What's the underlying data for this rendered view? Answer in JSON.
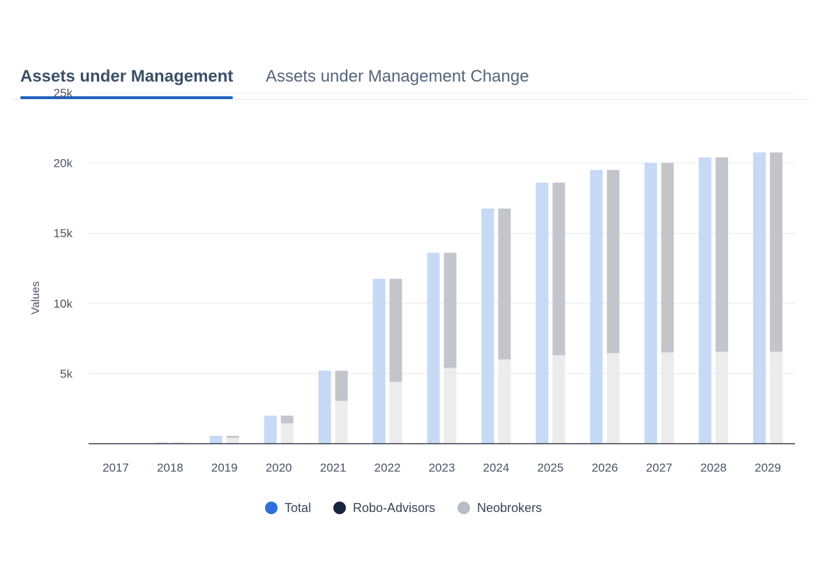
{
  "tabs": [
    {
      "label": "Assets under Management",
      "active": true
    },
    {
      "label": "Assets under Management Change",
      "active": false
    }
  ],
  "chart_data": {
    "type": "bar",
    "categories": [
      "2017",
      "2018",
      "2019",
      "2020",
      "2021",
      "2022",
      "2023",
      "2024",
      "2025",
      "2026",
      "2027",
      "2028",
      "2029"
    ],
    "ylabel": "Values",
    "ylim": [
      0,
      25000
    ],
    "yticks": [
      5000,
      10000,
      15000,
      20000,
      25000
    ],
    "ytick_labels": [
      "5k",
      "10k",
      "15k",
      "20k",
      "25k"
    ],
    "grid": true,
    "legend_position": "bottom",
    "stacked_second_bar": true,
    "series": [
      {
        "name": "Total",
        "color": "#2e6fd9",
        "values": [
          20,
          80,
          560,
          2000,
          5200,
          11750,
          13600,
          16750,
          18600,
          19500,
          20000,
          20400,
          20750
        ]
      },
      {
        "name": "Robo-Advisors",
        "color": "#17253d",
        "values": [
          15,
          60,
          420,
          1450,
          3050,
          4400,
          5400,
          6000,
          6300,
          6450,
          6500,
          6550,
          6550
        ]
      },
      {
        "name": "Neobrokers",
        "color": "#b8bcc4",
        "values": [
          5,
          20,
          140,
          550,
          2150,
          7350,
          8200,
          10750,
          12300,
          13050,
          13500,
          13850,
          14200
        ]
      }
    ]
  }
}
